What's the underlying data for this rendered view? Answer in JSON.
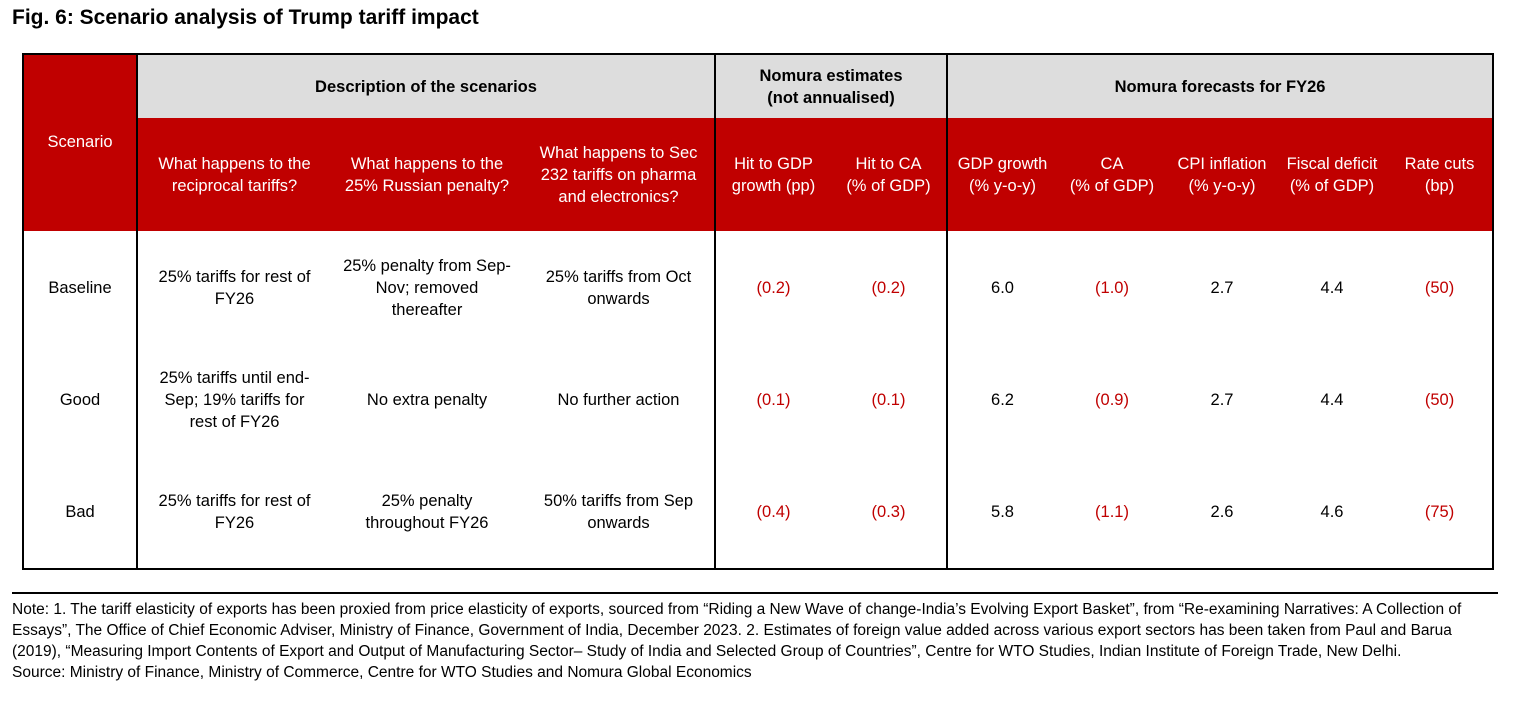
{
  "title": "Fig. 6: Scenario analysis of Trump tariff impact",
  "chart_data": {
    "type": "table",
    "title": "Fig. 6: Scenario analysis of Trump tariff impact",
    "group_headers": [
      "Description of the scenarios",
      "Nomura estimates\n(not annualised)",
      "Nomura forecasts for FY26"
    ],
    "scenario_header": "Scenario",
    "columns": [
      "What happens to the\nreciprocal tariffs?",
      "What happens to the\n25% Russian penalty?",
      "What happens to Sec\n232 tariffs on pharma\nand electronics?",
      "Hit to GDP\ngrowth (pp)",
      "Hit to CA\n(% of GDP)",
      "GDP growth\n(% y-o-y)",
      "CA\n(% of GDP)",
      "CPI inflation\n(% y-o-y)",
      "Fiscal deficit\n(% of GDP)",
      "Rate cuts\n(bp)"
    ],
    "rows": [
      {
        "scenario": "Baseline",
        "reciprocal": "25% tariffs for rest of\nFY26",
        "russian": "25% penalty from Sep-\nNov; removed\nthereafter",
        "sec232": "25% tariffs from Oct\nonwards",
        "hit_gdp": "(0.2)",
        "hit_ca": "(0.2)",
        "gdp_growth": "6.0",
        "ca": "(1.0)",
        "cpi": "2.7",
        "fiscal": "4.4",
        "rate_cuts": "(50)"
      },
      {
        "scenario": "Good",
        "reciprocal": "25% tariffs until end-\nSep; 19% tariffs for\nrest of FY26",
        "russian": "No extra penalty",
        "sec232": "No further action",
        "hit_gdp": "(0.1)",
        "hit_ca": "(0.1)",
        "gdp_growth": "6.2",
        "ca": "(0.9)",
        "cpi": "2.7",
        "fiscal": "4.4",
        "rate_cuts": "(50)"
      },
      {
        "scenario": "Bad",
        "reciprocal": "25% tariffs for rest of\nFY26",
        "russian": "25% penalty\nthroughout FY26",
        "sec232": "50% tariffs from Sep\nonwards",
        "hit_gdp": "(0.4)",
        "hit_ca": "(0.3)",
        "gdp_growth": "5.8",
        "ca": "(1.1)",
        "cpi": "2.6",
        "fiscal": "4.6",
        "rate_cuts": "(75)"
      }
    ]
  },
  "notes": {
    "note": "Note: 1. The tariff elasticity of exports has been proxied from price elasticity of exports, sourced from “Riding a New Wave of change-India’s Evolving Export Basket”, from “Re-examining Narratives: A Collection of Essays”, The Office of Chief Economic Adviser, Ministry of Finance, Government of India, December 2023. 2. Estimates of foreign value added across various export sectors has been taken from Paul and Barua (2019), “Measuring Import Contents of Export and Output of Manufacturing Sector– Study of India and Selected Group of Countries”, Centre for WTO Studies, Indian Institute of Foreign Trade, New Delhi.",
    "source": "Source: Ministry of Finance, Ministry of Commerce, Centre for WTO Studies and Nomura Global Economics"
  },
  "colors": {
    "header_red": "#c00000",
    "header_grey": "#dddddd",
    "negative": "#c00000"
  }
}
